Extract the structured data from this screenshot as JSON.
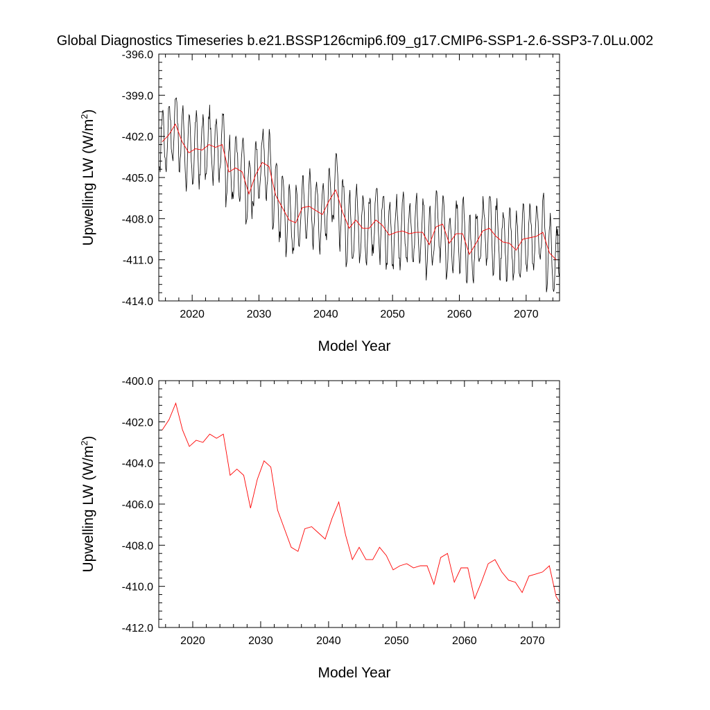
{
  "figure": {
    "title": "Global Diagnostics Timeseries b.e21.BSSP126cmip6.f09_g17.CMIP6-SSP1-2.6-SSP3-7.0Lu.002"
  },
  "colors": {
    "monthly": "#000000",
    "annual": "#ff0000",
    "axes": "#000000",
    "background": "#ffffff"
  },
  "chart_data": [
    {
      "type": "line",
      "xlabel": "Model Year",
      "ylabel": "Upwelling LW (W/m",
      "ylabel_superscript": "2",
      "ylabel_suffix": ")",
      "xlim": [
        2015,
        2075
      ],
      "ylim": [
        -414.0,
        -396.0
      ],
      "x_ticks": [
        2020,
        2030,
        2040,
        2050,
        2060,
        2070
      ],
      "x_tick_labels": [
        "2020",
        "2030",
        "2040",
        "2050",
        "2060",
        "2070"
      ],
      "y_ticks": [
        -396.0,
        -399.0,
        -402.0,
        -405.0,
        -408.0,
        -411.0,
        -414.0
      ],
      "y_tick_labels": [
        "-396.0",
        "-399.0",
        "-402.0",
        "-405.0",
        "-408.0",
        "-411.0",
        "-414.0"
      ],
      "grid": false,
      "series": [
        {
          "color": "#000000",
          "style": "monthly, seasonal cycle",
          "samples_per_year": 12,
          "annual_mean_series": 1,
          "seasonal_amplitude": 2.4,
          "x_start": 2015.04,
          "x_end": 2074.96
        },
        {
          "color": "#ff0000",
          "x": [
            2015.5,
            2016.5,
            2017.5,
            2018.5,
            2019.5,
            2020.5,
            2021.5,
            2022.5,
            2023.5,
            2024.5,
            2025.5,
            2026.5,
            2027.5,
            2028.5,
            2029.5,
            2030.5,
            2031.5,
            2032.5,
            2033.5,
            2034.5,
            2035.5,
            2036.5,
            2037.5,
            2038.5,
            2039.5,
            2040.5,
            2041.5,
            2042.5,
            2043.5,
            2044.5,
            2045.5,
            2046.5,
            2047.5,
            2048.5,
            2049.5,
            2050.5,
            2051.5,
            2052.5,
            2053.5,
            2054.5,
            2055.5,
            2056.5,
            2057.5,
            2058.5,
            2059.5,
            2060.5,
            2061.5,
            2062.5,
            2063.5,
            2064.5,
            2065.5,
            2066.5,
            2067.5,
            2068.5,
            2069.5,
            2070.5,
            2071.5,
            2072.5,
            2073.5,
            2074.5
          ],
          "values": [
            -402.4,
            -401.9,
            -401.1,
            -402.4,
            -403.2,
            -402.9,
            -403.0,
            -402.6,
            -402.8,
            -402.6,
            -404.6,
            -404.3,
            -404.6,
            -406.2,
            -404.8,
            -403.9,
            -404.2,
            -406.3,
            -407.2,
            -408.1,
            -408.3,
            -407.2,
            -407.1,
            -407.4,
            -407.7,
            -406.7,
            -405.9,
            -407.5,
            -408.7,
            -408.1,
            -408.7,
            -408.7,
            -408.1,
            -408.5,
            -409.2,
            -409.0,
            -408.9,
            -409.1,
            -409.0,
            -409.0,
            -409.9,
            -408.6,
            -408.4,
            -409.8,
            -409.1,
            -409.1,
            -410.6,
            -409.8,
            -408.9,
            -408.7,
            -409.3,
            -409.7,
            -409.8,
            -410.3,
            -409.5,
            -409.4,
            -409.3,
            -409.0,
            -410.5,
            -411.0
          ]
        }
      ]
    },
    {
      "type": "line",
      "xlabel": "Model Year",
      "ylabel": "Upwelling LW (W/m",
      "ylabel_superscript": "2",
      "ylabel_suffix": ")",
      "xlim": [
        2015,
        2074
      ],
      "ylim": [
        -412.0,
        -400.0
      ],
      "x_ticks": [
        2020,
        2030,
        2040,
        2050,
        2060,
        2070
      ],
      "x_tick_labels": [
        "2020",
        "2030",
        "2040",
        "2050",
        "2060",
        "2070"
      ],
      "y_ticks": [
        -400.0,
        -402.0,
        -404.0,
        -406.0,
        -408.0,
        -410.0,
        -412.0
      ],
      "y_tick_labels": [
        "-400.0",
        "-402.0",
        "-404.0",
        "-406.0",
        "-408.0",
        "-410.0",
        "-412.0"
      ],
      "grid": false,
      "series": [
        {
          "color": "#ff0000",
          "x": [
            2015.5,
            2016.5,
            2017.5,
            2018.5,
            2019.5,
            2020.5,
            2021.5,
            2022.5,
            2023.5,
            2024.5,
            2025.5,
            2026.5,
            2027.5,
            2028.5,
            2029.5,
            2030.5,
            2031.5,
            2032.5,
            2033.5,
            2034.5,
            2035.5,
            2036.5,
            2037.5,
            2038.5,
            2039.5,
            2040.5,
            2041.5,
            2042.5,
            2043.5,
            2044.5,
            2045.5,
            2046.5,
            2047.5,
            2048.5,
            2049.5,
            2050.5,
            2051.5,
            2052.5,
            2053.5,
            2054.5,
            2055.5,
            2056.5,
            2057.5,
            2058.5,
            2059.5,
            2060.5,
            2061.5,
            2062.5,
            2063.5,
            2064.5,
            2065.5,
            2066.5,
            2067.5,
            2068.5,
            2069.5,
            2070.5,
            2071.5,
            2072.5,
            2073.5,
            2074.5
          ],
          "values": [
            -402.4,
            -401.9,
            -401.1,
            -402.4,
            -403.2,
            -402.9,
            -403.0,
            -402.6,
            -402.8,
            -402.6,
            -404.6,
            -404.3,
            -404.6,
            -406.2,
            -404.8,
            -403.9,
            -404.2,
            -406.3,
            -407.2,
            -408.1,
            -408.3,
            -407.2,
            -407.1,
            -407.4,
            -407.7,
            -406.7,
            -405.9,
            -407.5,
            -408.7,
            -408.1,
            -408.7,
            -408.7,
            -408.1,
            -408.5,
            -409.2,
            -409.0,
            -408.9,
            -409.1,
            -409.0,
            -409.0,
            -409.9,
            -408.6,
            -408.4,
            -409.8,
            -409.1,
            -409.1,
            -410.6,
            -409.8,
            -408.9,
            -408.7,
            -409.3,
            -409.7,
            -409.8,
            -410.3,
            -409.5,
            -409.4,
            -409.3,
            -409.0,
            -410.5,
            -411.0
          ]
        }
      ]
    }
  ]
}
